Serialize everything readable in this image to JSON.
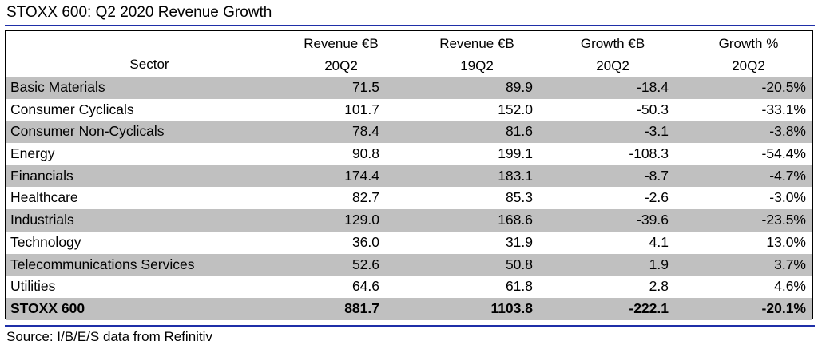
{
  "title": "STOXX 600: Q2 2020 Revenue Growth",
  "source": "Source: I/B/E/S data from Refinitiv",
  "chart_data": {
    "type": "table",
    "title": "STOXX 600: Q2 2020 Revenue Growth",
    "columns": [
      {
        "line1": "",
        "line2": "Sector"
      },
      {
        "line1": "Revenue €B",
        "line2": "20Q2"
      },
      {
        "line1": "Revenue €B",
        "line2": "19Q2"
      },
      {
        "line1": "Growth €B",
        "line2": "20Q2"
      },
      {
        "line1": "Growth %",
        "line2": "20Q2"
      }
    ],
    "rows": [
      {
        "sector": "Basic Materials",
        "rev_20q2": "71.5",
        "rev_19q2": "89.9",
        "growth_eur": "-18.4",
        "growth_pct": "-20.5%"
      },
      {
        "sector": "Consumer Cyclicals",
        "rev_20q2": "101.7",
        "rev_19q2": "152.0",
        "growth_eur": "-50.3",
        "growth_pct": "-33.1%"
      },
      {
        "sector": "Consumer Non-Cyclicals",
        "rev_20q2": "78.4",
        "rev_19q2": "81.6",
        "growth_eur": "-3.1",
        "growth_pct": "-3.8%"
      },
      {
        "sector": "Energy",
        "rev_20q2": "90.8",
        "rev_19q2": "199.1",
        "growth_eur": "-108.3",
        "growth_pct": "-54.4%"
      },
      {
        "sector": "Financials",
        "rev_20q2": "174.4",
        "rev_19q2": "183.1",
        "growth_eur": "-8.7",
        "growth_pct": "-4.7%"
      },
      {
        "sector": "Healthcare",
        "rev_20q2": "82.7",
        "rev_19q2": "85.3",
        "growth_eur": "-2.6",
        "growth_pct": "-3.0%"
      },
      {
        "sector": "Industrials",
        "rev_20q2": "129.0",
        "rev_19q2": "168.6",
        "growth_eur": "-39.6",
        "growth_pct": "-23.5%"
      },
      {
        "sector": "Technology",
        "rev_20q2": "36.0",
        "rev_19q2": "31.9",
        "growth_eur": "4.1",
        "growth_pct": "13.0%"
      },
      {
        "sector": "Telecommunications Services",
        "rev_20q2": "52.6",
        "rev_19q2": "50.8",
        "growth_eur": "1.9",
        "growth_pct": "3.7%"
      },
      {
        "sector": "Utilities",
        "rev_20q2": "64.6",
        "rev_19q2": "61.8",
        "growth_eur": "2.8",
        "growth_pct": "4.6%"
      }
    ],
    "total": {
      "sector": "STOXX 600",
      "rev_20q2": "881.7",
      "rev_19q2": "1103.8",
      "growth_eur": "-222.1",
      "growth_pct": "-20.1%"
    },
    "shaded_color": "#c0c0c0",
    "rule_color": "#1f2fa8"
  }
}
